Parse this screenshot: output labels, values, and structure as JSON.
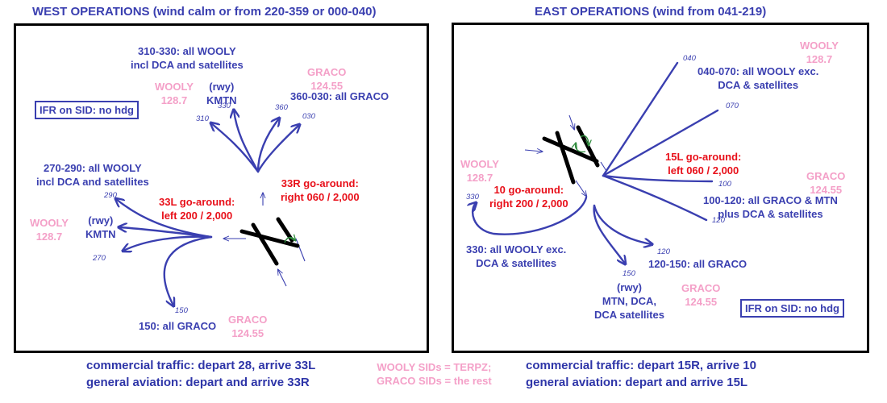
{
  "west": {
    "title": "WEST OPERATIONS (wind calm or from 220-359 or 000-040)",
    "ifr_note": "IFR on SID: no hdg",
    "labels": {
      "l310_330": "310-330: all WOOLY\nincl DCA and satellites",
      "wooly_top": "WOOLY\n128.7",
      "rwy_kmtn_top": "(rwy)\nKMTN",
      "graco_top": "GRACO\n124.55",
      "l360_030": "360-030: all GRACO",
      "l270_290": "270-290: all WOOLY\nincl DCA and satellites",
      "go33l": "33L go-around:\nleft 200 / 2,000",
      "go33r": "33R go-around:\nright 060 / 2,000",
      "wooly_left": "WOOLY\n128.7",
      "rwy_kmtn_left": "(rwy)\nKMTN",
      "l150": "150: all GRACO",
      "graco_bottom": "GRACO\n124.55"
    },
    "headings": {
      "h310": "310",
      "h330": "330",
      "h360": "360",
      "h030": "030",
      "h290": "290",
      "h270": "270",
      "h150": "150"
    },
    "footer": "commercial traffic: depart 28, arrive 33L\ngeneral aviation: depart and arrive 33R"
  },
  "east": {
    "title": "EAST OPERATIONS (wind from 041-219)",
    "ifr_note": "IFR on SID: no hdg",
    "labels": {
      "wooly_top": "WOOLY\n128.7",
      "l040_070": "040-070: all WOOLY exc.\nDCA & satellites",
      "wooly_left": "WOOLY\n128.7",
      "go15l": "15L go-around:\nleft 060 / 2,000",
      "graco_right": "GRACO\n124.55",
      "go10": "10 go-around:\nright 200 / 2,000",
      "l100_120": "100-120: all GRACO & MTN\nplus DCA & satellites",
      "l330": "330: all WOOLY exc.\nDCA & satellites",
      "l120_150": "120-150: all GRACO",
      "rwy_mtn": "(rwy)\nMTN, DCA,\nDCA satellites",
      "graco_bottom": "GRACO\n124.55"
    },
    "headings": {
      "h040": "040",
      "h070": "070",
      "h100": "100",
      "h120": "120",
      "h330": "330",
      "h120b": "120",
      "h150": "150"
    },
    "footer": "commercial traffic: depart 15R, arrive 10\ngeneral aviation: depart and arrive 15L"
  },
  "center_note": "WOOLY SIDs = TERPZ;\nGRACO SIDs = the rest",
  "colors": {
    "route": "#3a3fb0",
    "frequency": "#f4a0c8",
    "go_around": "#e8101a",
    "runway": "#000000",
    "arrow_green": "#2e8b3c"
  }
}
